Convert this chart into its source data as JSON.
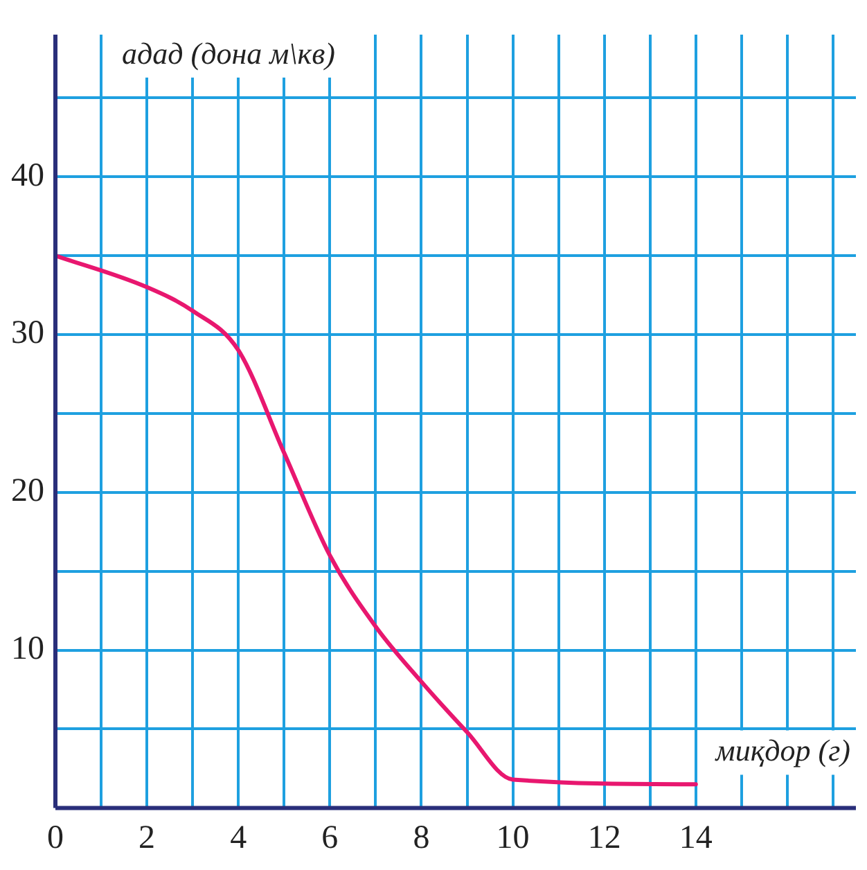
{
  "chart_data": {
    "type": "line",
    "xlabel": "миқдор (г)",
    "ylabel": "адад (дона м\\кв)",
    "x": [
      0,
      2,
      3,
      4,
      5,
      6,
      7,
      8,
      9,
      10,
      14
    ],
    "series": [
      {
        "color": "#e8176f",
        "values": [
          35,
          33,
          31.5,
          29,
          22.5,
          16,
          11.5,
          8,
          4.8,
          1.8,
          1.5
        ]
      }
    ],
    "xlim": [
      0,
      17.5
    ],
    "ylim": [
      0,
      49
    ],
    "xticks": [
      0,
      {
        "value": 1,
        "label": null
      },
      2,
      {
        "value": 3,
        "label": null
      },
      4,
      {
        "value": 5,
        "label": null
      },
      6,
      {
        "value": 7,
        "label": null
      },
      8,
      {
        "value": 9,
        "label": null
      },
      10,
      {
        "value": 11,
        "label": null
      },
      12,
      {
        "value": 13,
        "label": null
      },
      14,
      {
        "value": 15,
        "label": null
      },
      {
        "value": 16,
        "label": null
      },
      {
        "value": 17,
        "label": null
      }
    ],
    "yticks": [
      {
        "value": 0,
        "label": null
      },
      {
        "value": 5,
        "label": null
      },
      10,
      {
        "value": 15,
        "label": null
      },
      20,
      {
        "value": 25,
        "label": null
      },
      30,
      {
        "value": 35,
        "label": null
      },
      40,
      {
        "value": 45,
        "label": null
      }
    ],
    "grid": true,
    "legend": false,
    "marker": "none",
    "line_style": "solid"
  }
}
